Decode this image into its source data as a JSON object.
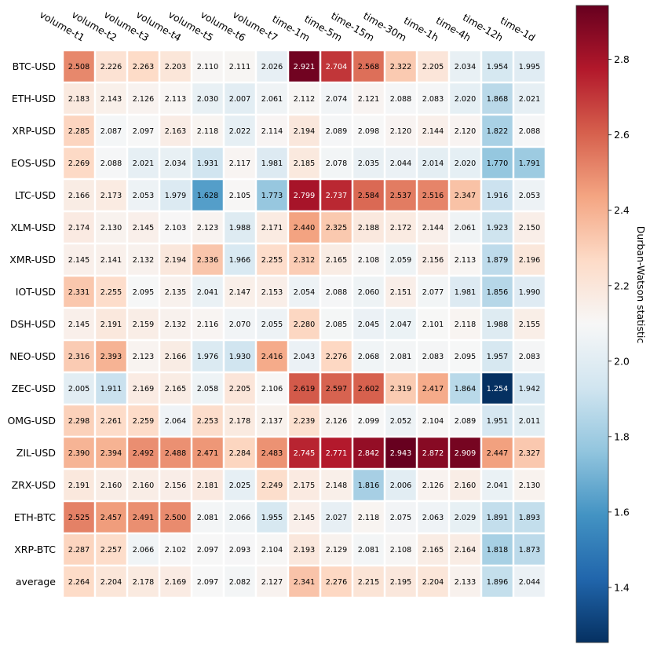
{
  "chart_data": {
    "type": "heatmap",
    "columns": [
      "volume-t1",
      "volume-t2",
      "volume-t3",
      "volume-t4",
      "volume-t5",
      "volume-t6",
      "volume-t7",
      "time-1m",
      "time-5m",
      "time-15m",
      "time-30m",
      "time-1h",
      "time-4h",
      "time-12h",
      "time-1d"
    ],
    "rows": [
      "BTC-USD",
      "ETH-USD",
      "XRP-USD",
      "EOS-USD",
      "LTC-USD",
      "XLM-USD",
      "XMR-USD",
      "IOT-USD",
      "DSH-USD",
      "NEO-USD",
      "ZEC-USD",
      "OMG-USD",
      "ZIL-USD",
      "ZRX-USD",
      "ETH-BTC",
      "XRP-BTC",
      "average"
    ],
    "values": [
      [
        2.508,
        2.226,
        2.263,
        2.203,
        2.11,
        2.111,
        2.026,
        2.921,
        2.704,
        2.568,
        2.322,
        2.205,
        2.034,
        1.954,
        1.995
      ],
      [
        2.183,
        2.143,
        2.126,
        2.113,
        2.03,
        2.007,
        2.061,
        2.112,
        2.074,
        2.121,
        2.088,
        2.083,
        2.02,
        1.868,
        2.021
      ],
      [
        2.285,
        2.087,
        2.097,
        2.163,
        2.118,
        2.022,
        2.114,
        2.194,
        2.089,
        2.098,
        2.12,
        2.144,
        2.12,
        1.822,
        2.088
      ],
      [
        2.269,
        2.088,
        2.021,
        2.034,
        1.931,
        2.117,
        1.981,
        2.185,
        2.078,
        2.035,
        2.044,
        2.014,
        2.02,
        1.77,
        1.791
      ],
      [
        2.166,
        2.173,
        2.053,
        1.979,
        1.628,
        2.105,
        1.773,
        2.799,
        2.737,
        2.584,
        2.537,
        2.516,
        2.347,
        1.916,
        2.053
      ],
      [
        2.174,
        2.13,
        2.145,
        2.103,
        2.123,
        1.988,
        2.171,
        2.44,
        2.325,
        2.188,
        2.172,
        2.144,
        2.061,
        1.923,
        2.15
      ],
      [
        2.145,
        2.141,
        2.132,
        2.194,
        2.336,
        1.966,
        2.255,
        2.312,
        2.165,
        2.108,
        2.059,
        2.156,
        2.113,
        1.879,
        2.196
      ],
      [
        2.331,
        2.255,
        2.095,
        2.135,
        2.041,
        2.147,
        2.153,
        2.054,
        2.088,
        2.06,
        2.151,
        2.077,
        1.981,
        1.856,
        1.99
      ],
      [
        2.145,
        2.191,
        2.159,
        2.132,
        2.116,
        2.07,
        2.055,
        2.28,
        2.085,
        2.045,
        2.047,
        2.101,
        2.118,
        1.988,
        2.155
      ],
      [
        2.316,
        2.393,
        2.123,
        2.166,
        1.976,
        1.93,
        2.416,
        2.043,
        2.276,
        2.068,
        2.081,
        2.083,
        2.095,
        1.957,
        2.083
      ],
      [
        2.005,
        1.911,
        2.169,
        2.165,
        2.058,
        2.205,
        2.106,
        2.619,
        2.597,
        2.602,
        2.319,
        2.417,
        1.864,
        1.254,
        1.942
      ],
      [
        2.298,
        2.261,
        2.259,
        2.064,
        2.253,
        2.178,
        2.137,
        2.239,
        2.126,
        2.099,
        2.052,
        2.104,
        2.089,
        1.951,
        2.011
      ],
      [
        2.39,
        2.394,
        2.492,
        2.488,
        2.471,
        2.284,
        2.483,
        2.745,
        2.771,
        2.842,
        2.943,
        2.872,
        2.909,
        2.447,
        2.327
      ],
      [
        2.191,
        2.16,
        2.16,
        2.156,
        2.181,
        2.025,
        2.249,
        2.175,
        2.148,
        1.816,
        2.006,
        2.126,
        2.16,
        2.041,
        2.13
      ],
      [
        2.525,
        2.457,
        2.491,
        2.5,
        2.081,
        2.066,
        1.955,
        2.145,
        2.027,
        2.118,
        2.075,
        2.063,
        2.029,
        1.891,
        1.893
      ],
      [
        2.287,
        2.257,
        2.066,
        2.102,
        2.097,
        2.093,
        2.104,
        2.193,
        2.129,
        2.081,
        2.108,
        2.165,
        2.164,
        1.818,
        1.873
      ],
      [
        2.264,
        2.204,
        2.178,
        2.169,
        2.097,
        2.082,
        2.127,
        2.341,
        2.276,
        2.215,
        2.195,
        2.204,
        2.133,
        1.896,
        2.044
      ]
    ],
    "colorbar": {
      "label": "Durban-Watson statistic",
      "min": 1.254,
      "max": 2.943,
      "ticks": [
        "1.4",
        "1.6",
        "1.8",
        "2.0",
        "2.2",
        "2.4",
        "2.6",
        "2.8"
      ],
      "colormap": "RdBu_r",
      "colors": [
        "#053061",
        "#2166ac",
        "#4393c3",
        "#92c5de",
        "#d1e5f0",
        "#f7f7f7",
        "#fddbc7",
        "#f4a582",
        "#d6604d",
        "#b2182b",
        "#67001f"
      ]
    },
    "title": "",
    "xlabel": "",
    "ylabel": ""
  }
}
